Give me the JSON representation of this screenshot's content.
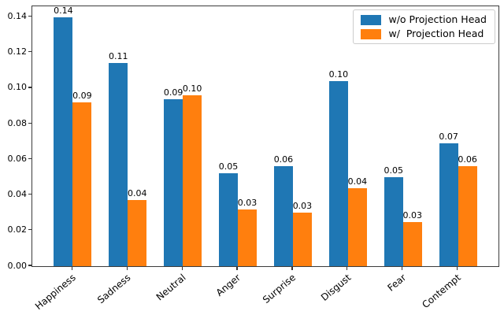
{
  "chart_data": {
    "type": "bar",
    "title": "",
    "xlabel": "",
    "ylabel": "",
    "grid": false,
    "legend_position": "upper right",
    "categories": [
      "Happiness",
      "Sadness",
      "Neutral",
      "Anger",
      "Surprise",
      "Disgust",
      "Fear",
      "Contempt"
    ],
    "series": [
      {
        "name": "w/o Projection Head",
        "color": "#1f77b4",
        "values": [
          0.14,
          0.114,
          0.094,
          0.052,
          0.056,
          0.104,
          0.05,
          0.069
        ],
        "bar_labels": [
          "0.14",
          "0.11",
          "0.09",
          "0.05",
          "0.06",
          "0.10",
          "0.05",
          "0.07"
        ]
      },
      {
        "name": "w/  Projection Head",
        "color": "#ff7f0e",
        "values": [
          0.092,
          0.037,
          0.096,
          0.032,
          0.03,
          0.044,
          0.025,
          0.056
        ],
        "bar_labels": [
          "0.09",
          "0.04",
          "0.10",
          "0.03",
          "0.03",
          "0.04",
          "0.03",
          "0.06"
        ]
      }
    ],
    "ytick_labels": [
      "0.00",
      "0.02",
      "0.04",
      "0.06",
      "0.08",
      "0.10",
      "0.12",
      "0.14"
    ],
    "ylim": [
      0,
      0.146
    ],
    "xlim_units": [
      -0.735,
      7.735
    ],
    "axis_color": "#3c3c3c",
    "legend_border_color": "#cccccc"
  }
}
